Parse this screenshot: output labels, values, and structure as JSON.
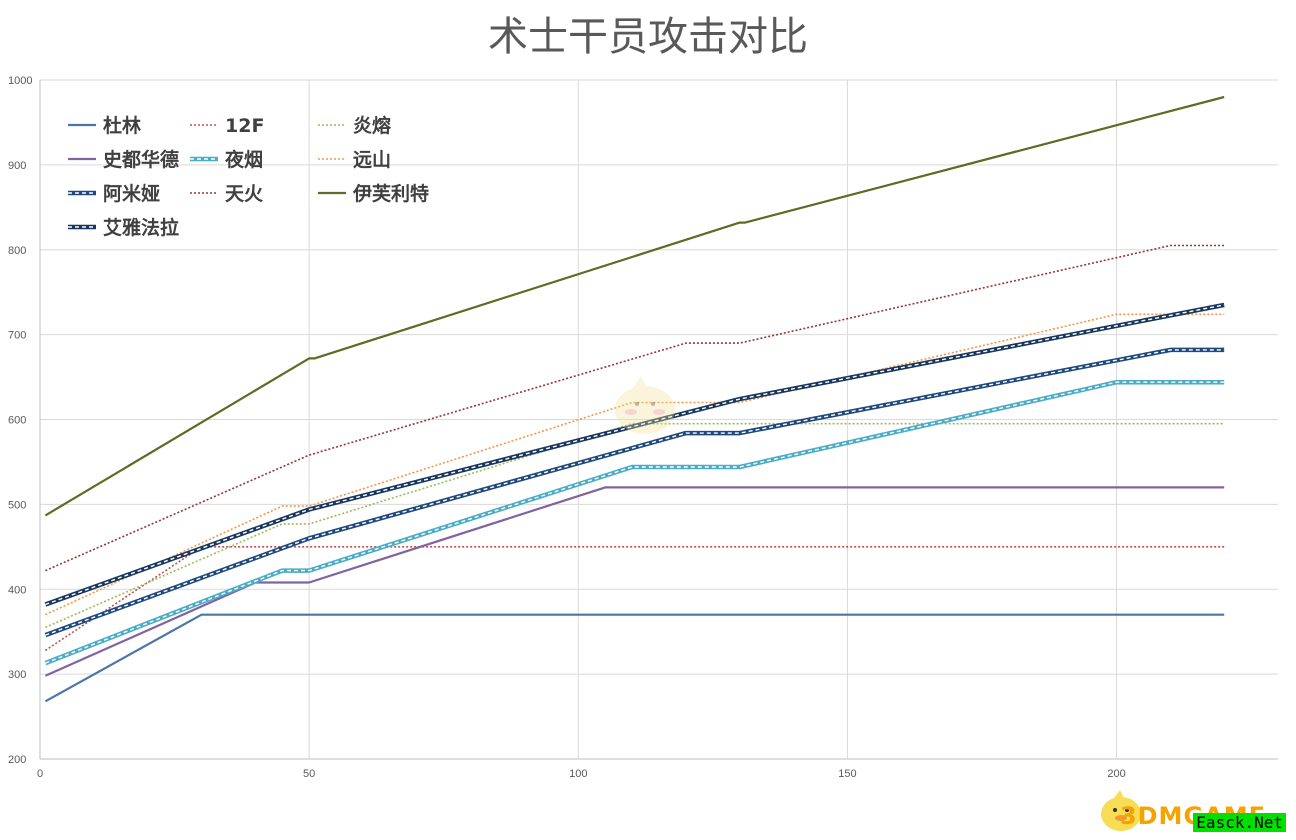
{
  "chart_data": {
    "type": "line",
    "title": "术士干员攻击对比",
    "xlim": [
      0,
      230
    ],
    "ylim": [
      200,
      1000
    ],
    "x_ticks": [
      0,
      50,
      100,
      150,
      200
    ],
    "y_ticks": [
      200,
      300,
      400,
      500,
      600,
      700,
      800,
      900,
      1000
    ],
    "grid": "on",
    "legend_position": "top-left",
    "series": [
      {
        "name": "杜林",
        "color": "#4a76a8",
        "style": "solid",
        "points": [
          [
            1,
            268
          ],
          [
            30,
            370
          ],
          [
            220,
            370
          ]
        ]
      },
      {
        "name": "12F",
        "color": "#c0504d",
        "style": "dotted",
        "points": [
          [
            1,
            328
          ],
          [
            30,
            450
          ],
          [
            220,
            450
          ]
        ]
      },
      {
        "name": "炎熔",
        "color": "#9bbb59",
        "style": "dotted",
        "points": [
          [
            1,
            355
          ],
          [
            45,
            477
          ],
          [
            50,
            477
          ],
          [
            110,
            595
          ],
          [
            220,
            595
          ]
        ]
      },
      {
        "name": "史都华德",
        "color": "#8064a2",
        "style": "solid",
        "points": [
          [
            1,
            298
          ],
          [
            40,
            408
          ],
          [
            50,
            408
          ],
          [
            105,
            520
          ],
          [
            220,
            520
          ]
        ]
      },
      {
        "name": "夜烟",
        "color": "#4bacc6",
        "style": "double",
        "points": [
          [
            1,
            313
          ],
          [
            45,
            422
          ],
          [
            50,
            422
          ],
          [
            110,
            544
          ],
          [
            130,
            544
          ],
          [
            200,
            644
          ],
          [
            220,
            644
          ]
        ]
      },
      {
        "name": "远山",
        "color": "#f79646",
        "style": "dotted",
        "points": [
          [
            1,
            370
          ],
          [
            45,
            498
          ],
          [
            50,
            498
          ],
          [
            110,
            620
          ],
          [
            130,
            620
          ],
          [
            200,
            724
          ],
          [
            220,
            724
          ]
        ]
      },
      {
        "name": "阿米娅",
        "color": "#1f497d",
        "style": "double",
        "points": [
          [
            1,
            346
          ],
          [
            50,
            460
          ],
          [
            120,
            584
          ],
          [
            130,
            584
          ],
          [
            210,
            682
          ],
          [
            220,
            682
          ]
        ]
      },
      {
        "name": "天火",
        "color": "#943634",
        "style": "dotted",
        "points": [
          [
            1,
            422
          ],
          [
            50,
            558
          ],
          [
            120,
            690
          ],
          [
            130,
            690
          ],
          [
            210,
            805
          ],
          [
            220,
            805
          ]
        ]
      },
      {
        "name": "伊芙利特",
        "color": "#5f6b24",
        "style": "solid",
        "points": [
          [
            1,
            487
          ],
          [
            50,
            672
          ],
          [
            51,
            672
          ],
          [
            130,
            832
          ],
          [
            131,
            832
          ],
          [
            220,
            980
          ]
        ]
      },
      {
        "name": "艾雅法拉",
        "color": "#17375e",
        "style": "double",
        "points": [
          [
            1,
            382
          ],
          [
            50,
            494
          ],
          [
            130,
            624
          ],
          [
            220,
            735
          ]
        ]
      }
    ]
  },
  "watermark": {
    "brand": "3DMGAME",
    "site": "Easck.Net"
  }
}
